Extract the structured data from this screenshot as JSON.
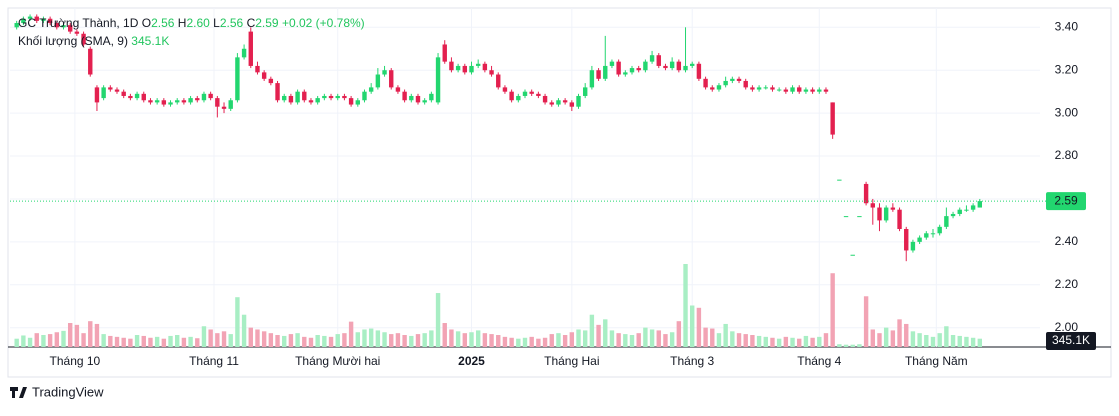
{
  "chart_data": {
    "type": "candlestick",
    "header": {
      "symbol": "GC Trường Thành, 1D",
      "open_label": "O",
      "open": "2.56",
      "high_label": "H",
      "high": "2.60",
      "low_label": "L",
      "low": "2.56",
      "close_label": "C",
      "close": "2.59",
      "change": "+0.02 (+0.78%)",
      "volume_label": "Khối lượng (SMA, 9)",
      "volume_sma": "345.1K"
    },
    "open": [
      3.4,
      3.42,
      3.44,
      3.45,
      3.43,
      3.44,
      3.42,
      3.4,
      3.41,
      3.38,
      3.37,
      3.3,
      3.12,
      3.07,
      3.12,
      3.11,
      3.1,
      3.08,
      3.07,
      3.09,
      3.06,
      3.05,
      3.06,
      3.04,
      3.05,
      3.06,
      3.05,
      3.07,
      3.06,
      3.09,
      3.07,
      3.03,
      3.02,
      3.06,
      3.26,
      3.38,
      3.22,
      3.19,
      3.16,
      3.14,
      3.06,
      3.08,
      3.05,
      3.1,
      3.06,
      3.05,
      3.07,
      3.08,
      3.07,
      3.08,
      3.07,
      3.04,
      3.06,
      3.1,
      3.12,
      3.18,
      3.2,
      3.12,
      3.1,
      3.06,
      3.08,
      3.05,
      3.06,
      3.05,
      3.32,
      3.24,
      3.2,
      3.22,
      3.19,
      3.22,
      3.23,
      3.2,
      3.18,
      3.12,
      3.1,
      3.06,
      3.08,
      3.1,
      3.09,
      3.08,
      3.05,
      3.04,
      3.06,
      3.05,
      3.03,
      3.08,
      3.12,
      3.2,
      3.16,
      3.22,
      3.24,
      3.18,
      3.19,
      3.21,
      3.2,
      3.24,
      3.27,
      3.22,
      3.21,
      3.24,
      3.2,
      3.22,
      3.23,
      3.16,
      3.12,
      3.11,
      3.13,
      3.15,
      3.16,
      3.15,
      3.12,
      3.11,
      3.12,
      3.12,
      3.11,
      3.11,
      3.1,
      3.12,
      3.1,
      3.11,
      3.1,
      3.11,
      3.05,
      2.69,
      2.52,
      2.34,
      2.52,
      2.67,
      2.58,
      2.56,
      2.5,
      2.56,
      2.55,
      2.46,
      2.36,
      2.4,
      2.42,
      2.44,
      2.44,
      2.47,
      2.52,
      2.53,
      2.55,
      2.55,
      2.56
    ],
    "high": [
      3.43,
      3.45,
      3.46,
      3.46,
      3.45,
      3.45,
      3.43,
      3.42,
      3.42,
      3.39,
      3.38,
      3.31,
      3.13,
      3.13,
      3.13,
      3.12,
      3.11,
      3.09,
      3.1,
      3.1,
      3.07,
      3.07,
      3.07,
      3.06,
      3.07,
      3.07,
      3.08,
      3.08,
      3.1,
      3.1,
      3.08,
      3.05,
      3.07,
      3.28,
      3.32,
      3.4,
      3.24,
      3.2,
      3.17,
      3.15,
      3.09,
      3.09,
      3.11,
      3.11,
      3.07,
      3.08,
      3.09,
      3.09,
      3.09,
      3.09,
      3.08,
      3.07,
      3.11,
      3.14,
      3.21,
      3.22,
      3.21,
      3.13,
      3.11,
      3.09,
      3.09,
      3.07,
      3.1,
      3.28,
      3.34,
      3.26,
      3.23,
      3.23,
      3.24,
      3.25,
      3.24,
      3.22,
      3.19,
      3.13,
      3.11,
      3.09,
      3.11,
      3.11,
      3.1,
      3.09,
      3.06,
      3.07,
      3.07,
      3.06,
      3.09,
      3.14,
      3.22,
      3.21,
      3.36,
      3.25,
      3.25,
      3.2,
      3.22,
      3.22,
      3.25,
      3.29,
      3.28,
      3.23,
      3.26,
      3.25,
      3.4,
      3.24,
      3.24,
      3.17,
      3.13,
      3.14,
      3.17,
      3.17,
      3.17,
      3.16,
      3.13,
      3.13,
      3.13,
      3.13,
      3.12,
      3.12,
      3.13,
      3.13,
      3.12,
      3.12,
      3.12,
      3.12,
      3.05,
      2.69,
      2.52,
      2.34,
      2.52,
      2.68,
      2.6,
      2.58,
      2.57,
      2.58,
      2.56,
      2.47,
      2.41,
      2.43,
      2.45,
      2.46,
      2.48,
      2.56,
      2.54,
      2.56,
      2.57,
      2.58,
      2.6
    ],
    "low": [
      3.39,
      3.41,
      3.43,
      3.42,
      3.42,
      3.41,
      3.39,
      3.39,
      3.37,
      3.36,
      3.31,
      3.17,
      3.01,
      3.06,
      3.1,
      3.09,
      3.07,
      3.06,
      3.06,
      3.05,
      3.04,
      3.04,
      3.03,
      3.03,
      3.04,
      3.04,
      3.04,
      3.05,
      3.05,
      3.06,
      2.98,
      3.0,
      3.01,
      3.05,
      3.25,
      3.21,
      3.18,
      3.15,
      3.13,
      3.05,
      3.05,
      3.04,
      3.04,
      3.05,
      3.04,
      3.04,
      3.06,
      3.06,
      3.06,
      3.06,
      3.03,
      3.03,
      3.05,
      3.09,
      3.11,
      3.17,
      3.11,
      3.09,
      3.05,
      3.05,
      3.04,
      3.04,
      3.05,
      3.04,
      3.23,
      3.19,
      3.19,
      3.18,
      3.18,
      3.21,
      3.19,
      3.17,
      3.11,
      3.09,
      3.05,
      3.05,
      3.07,
      3.08,
      3.07,
      3.04,
      3.03,
      3.03,
      3.04,
      3.01,
      3.02,
      3.07,
      3.11,
      3.15,
      3.15,
      3.21,
      3.17,
      3.17,
      3.18,
      3.19,
      3.19,
      3.23,
      3.21,
      3.2,
      3.2,
      3.19,
      3.19,
      3.21,
      3.15,
      3.11,
      3.1,
      3.1,
      3.12,
      3.14,
      3.14,
      3.11,
      3.1,
      3.1,
      3.11,
      3.1,
      3.1,
      3.09,
      3.09,
      3.09,
      3.09,
      3.09,
      3.09,
      3.09,
      2.88,
      2.69,
      2.52,
      2.34,
      2.52,
      2.57,
      2.48,
      2.45,
      2.49,
      2.54,
      2.45,
      2.31,
      2.35,
      2.39,
      2.41,
      2.42,
      2.43,
      2.46,
      2.51,
      2.52,
      2.54,
      2.54,
      2.56
    ],
    "close": [
      3.42,
      3.44,
      3.45,
      3.43,
      3.44,
      3.42,
      3.4,
      3.41,
      3.38,
      3.37,
      3.32,
      3.18,
      3.05,
      3.12,
      3.11,
      3.1,
      3.08,
      3.07,
      3.09,
      3.06,
      3.05,
      3.06,
      3.04,
      3.05,
      3.06,
      3.05,
      3.07,
      3.06,
      3.09,
      3.07,
      3.03,
      3.02,
      3.06,
      3.26,
      3.3,
      3.22,
      3.19,
      3.16,
      3.14,
      3.06,
      3.08,
      3.05,
      3.1,
      3.06,
      3.05,
      3.07,
      3.08,
      3.07,
      3.08,
      3.07,
      3.04,
      3.06,
      3.1,
      3.12,
      3.18,
      3.2,
      3.12,
      3.1,
      3.06,
      3.08,
      3.05,
      3.06,
      3.09,
      3.26,
      3.24,
      3.2,
      3.22,
      3.19,
      3.22,
      3.23,
      3.2,
      3.18,
      3.12,
      3.1,
      3.06,
      3.08,
      3.1,
      3.09,
      3.08,
      3.05,
      3.04,
      3.06,
      3.05,
      3.03,
      3.08,
      3.12,
      3.2,
      3.16,
      3.22,
      3.24,
      3.18,
      3.19,
      3.21,
      3.2,
      3.24,
      3.27,
      3.22,
      3.21,
      3.24,
      3.2,
      3.22,
      3.23,
      3.16,
      3.12,
      3.11,
      3.13,
      3.15,
      3.16,
      3.15,
      3.12,
      3.11,
      3.12,
      3.12,
      3.11,
      3.11,
      3.1,
      3.12,
      3.1,
      3.11,
      3.1,
      3.11,
      3.1,
      2.9,
      2.69,
      2.52,
      2.34,
      2.52,
      2.58,
      2.56,
      2.5,
      2.56,
      2.55,
      2.46,
      2.36,
      2.4,
      2.42,
      2.44,
      2.44,
      2.47,
      2.52,
      2.53,
      2.55,
      2.55,
      2.57,
      2.59
    ],
    "volume": [
      180000,
      250000,
      200000,
      300000,
      260000,
      280000,
      320000,
      350000,
      520000,
      480000,
      300000,
      560000,
      500000,
      280000,
      240000,
      220000,
      200000,
      180000,
      260000,
      240000,
      200000,
      220000,
      180000,
      240000,
      260000,
      200000,
      220000,
      190000,
      450000,
      380000,
      300000,
      340000,
      280000,
      1080000,
      700000,
      420000,
      380000,
      340000,
      300000,
      260000,
      240000,
      280000,
      300000,
      220000,
      200000,
      260000,
      240000,
      220000,
      280000,
      300000,
      550000,
      320000,
      380000,
      400000,
      360000,
      320000,
      280000,
      300000,
      260000,
      240000,
      280000,
      300000,
      360000,
      1170000,
      520000,
      380000,
      340000,
      300000,
      320000,
      360000,
      300000,
      280000,
      260000,
      220000,
      200000,
      180000,
      200000,
      220000,
      180000,
      200000,
      280000,
      300000,
      260000,
      320000,
      380000,
      360000,
      700000,
      480000,
      600000,
      360000,
      300000,
      280000,
      260000,
      300000,
      420000,
      380000,
      360000,
      280000,
      320000,
      560000,
      1800000,
      900000,
      850000,
      420000,
      400000,
      300000,
      500000,
      340000,
      300000,
      280000,
      260000,
      240000,
      220000,
      200000,
      180000,
      220000,
      200000,
      180000,
      240000,
      200000,
      220000,
      300000,
      1600000,
      60000,
      50000,
      50000,
      60000,
      1100000,
      380000,
      300000,
      420000,
      360000,
      600000,
      500000,
      340000,
      300000,
      260000,
      220000,
      300000,
      450000,
      260000,
      240000,
      220000,
      200000,
      180000
    ],
    "up_color": "#22d66f",
    "down_color": "#e3204f",
    "volume_up_color": "#a8eec4",
    "volume_down_color": "#f2a3b4",
    "xlim": [
      -1,
      153
    ],
    "xticks": [
      {
        "value": 8.7,
        "label": "Tháng 10"
      },
      {
        "value": 29.5,
        "label": "Tháng 11"
      },
      {
        "value": 48,
        "label": "Tháng Mười hai"
      },
      {
        "value": 68,
        "label": "2025",
        "bold": true
      },
      {
        "value": 83,
        "label": "Tháng Hai"
      },
      {
        "value": 101,
        "label": "Tháng 3"
      },
      {
        "value": 120,
        "label": "Tháng 4"
      },
      {
        "value": 137.5,
        "label": "Tháng Năm"
      }
    ],
    "ylim": [
      1.91,
      3.49
    ],
    "yticks": [
      {
        "value": 2,
        "label": "2.00"
      },
      {
        "value": 2.2,
        "label": "2.20"
      },
      {
        "value": 2.4,
        "label": "2.40"
      },
      {
        "value": 2.6,
        "label": "2.60"
      },
      {
        "value": 2.8,
        "label": "2.80"
      },
      {
        "value": 3,
        "label": "3.00"
      },
      {
        "value": 3.2,
        "label": "3.20"
      },
      {
        "value": 3.4,
        "label": "3.40"
      }
    ],
    "grid": true,
    "last_price_line": true
  },
  "branding": "TradingView"
}
